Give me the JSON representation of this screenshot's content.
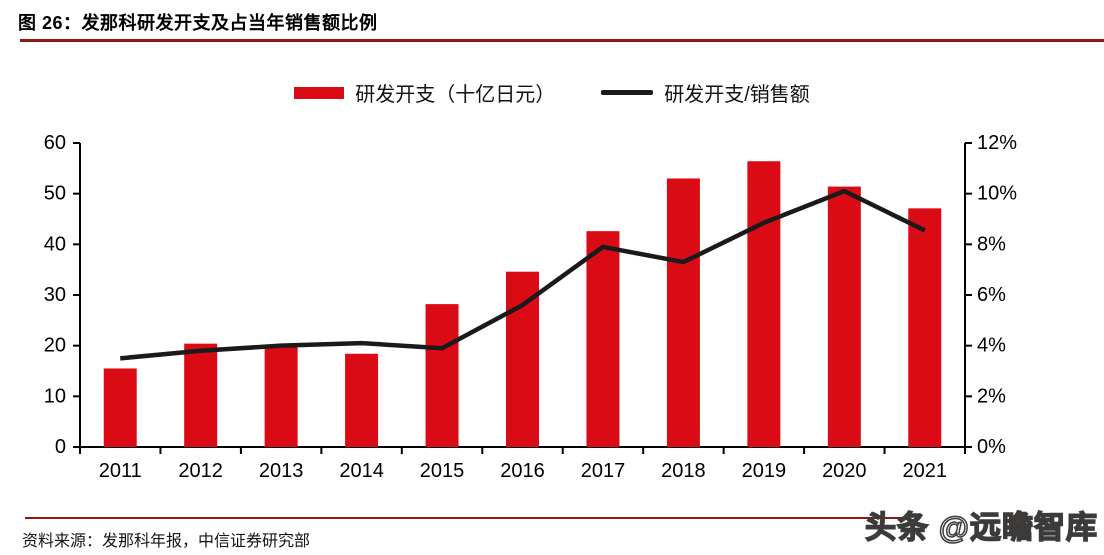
{
  "figure": {
    "title": "图 26：发那科研发开支及占当年销售额比例",
    "source": "资料来源：发那科年报，中信证券研究部",
    "watermark": "头条 @远瞻智库"
  },
  "legend": {
    "bar_label": "研发开支（十亿日元）",
    "line_label": "研发开支/销售额"
  },
  "colors": {
    "bar": "#db0b16",
    "line": "#1a1a1a",
    "accent_rule": "#8e1a12",
    "axis": "#000000"
  },
  "chart_data": {
    "type": "bar+line",
    "title": "发那科研发开支及占当年销售额比例",
    "categories": [
      "2011",
      "2012",
      "2013",
      "2014",
      "2015",
      "2016",
      "2017",
      "2018",
      "2019",
      "2020",
      "2021"
    ],
    "series": [
      {
        "name": "研发开支（十亿日元）",
        "type": "bar",
        "axis": "left",
        "color": "#db0b16",
        "values": [
          15.5,
          20.4,
          20.2,
          18.4,
          28.2,
          34.6,
          42.6,
          53.0,
          56.4,
          51.4,
          47.1
        ]
      },
      {
        "name": "研发开支/销售额",
        "type": "line",
        "axis": "right",
        "color": "#1a1a1a",
        "values": [
          3.5,
          3.8,
          4.0,
          4.1,
          3.9,
          5.6,
          7.9,
          7.3,
          8.85,
          10.1,
          8.55
        ]
      }
    ],
    "left_axis": {
      "min": 0,
      "max": 60,
      "step": 10,
      "labels": [
        "0",
        "10",
        "20",
        "30",
        "40",
        "50",
        "60"
      ]
    },
    "right_axis": {
      "min": 0,
      "max": 12,
      "step": 2,
      "labels": [
        "0%",
        "2%",
        "4%",
        "6%",
        "8%",
        "10%",
        "12%"
      ]
    },
    "grid": false,
    "legend_position": "top"
  }
}
